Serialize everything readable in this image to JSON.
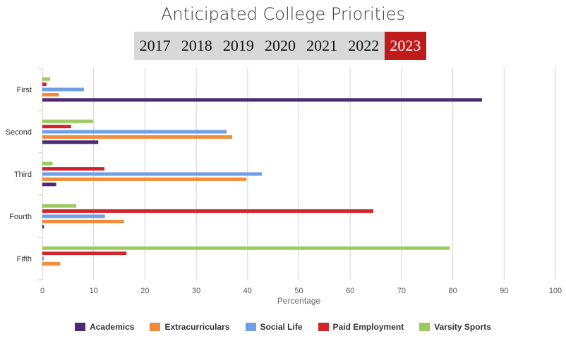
{
  "title": "Anticipated College Priorities",
  "years": [
    "2017",
    "2018",
    "2019",
    "2020",
    "2021",
    "2022",
    "2023"
  ],
  "selected_year": "2023",
  "colors": {
    "active_tab": "#bf1b1b",
    "tab_bar": "#d8d8d8"
  },
  "chart_data": {
    "type": "bar",
    "orientation": "horizontal",
    "title": "Anticipated College Priorities",
    "categories": [
      "First",
      "Second",
      "Third",
      "Fourth",
      "Fifth"
    ],
    "xlabel": "Percentage",
    "ylabel": "",
    "xlim": [
      0,
      100
    ],
    "xticks": [
      0,
      10,
      20,
      30,
      40,
      50,
      60,
      70,
      80,
      90,
      100
    ],
    "grid": true,
    "legend_position": "bottom",
    "series": [
      {
        "name": "Academics",
        "color": "#4b2a73",
        "values": [
          85.7,
          10.9,
          2.7,
          0.3,
          0.0
        ]
      },
      {
        "name": "Extracurriculars",
        "color": "#f28c3b",
        "values": [
          3.2,
          37.0,
          39.8,
          15.9,
          3.5
        ]
      },
      {
        "name": "Social Life",
        "color": "#6f9fe6",
        "values": [
          8.1,
          35.9,
          42.8,
          12.2,
          0.3
        ]
      },
      {
        "name": "Paid Employment",
        "color": "#d0252b",
        "values": [
          0.8,
          5.6,
          12.1,
          64.5,
          16.4
        ]
      },
      {
        "name": "Varsity Sports",
        "color": "#9cc962",
        "values": [
          1.5,
          9.9,
          2.0,
          6.6,
          79.4
        ]
      }
    ]
  }
}
